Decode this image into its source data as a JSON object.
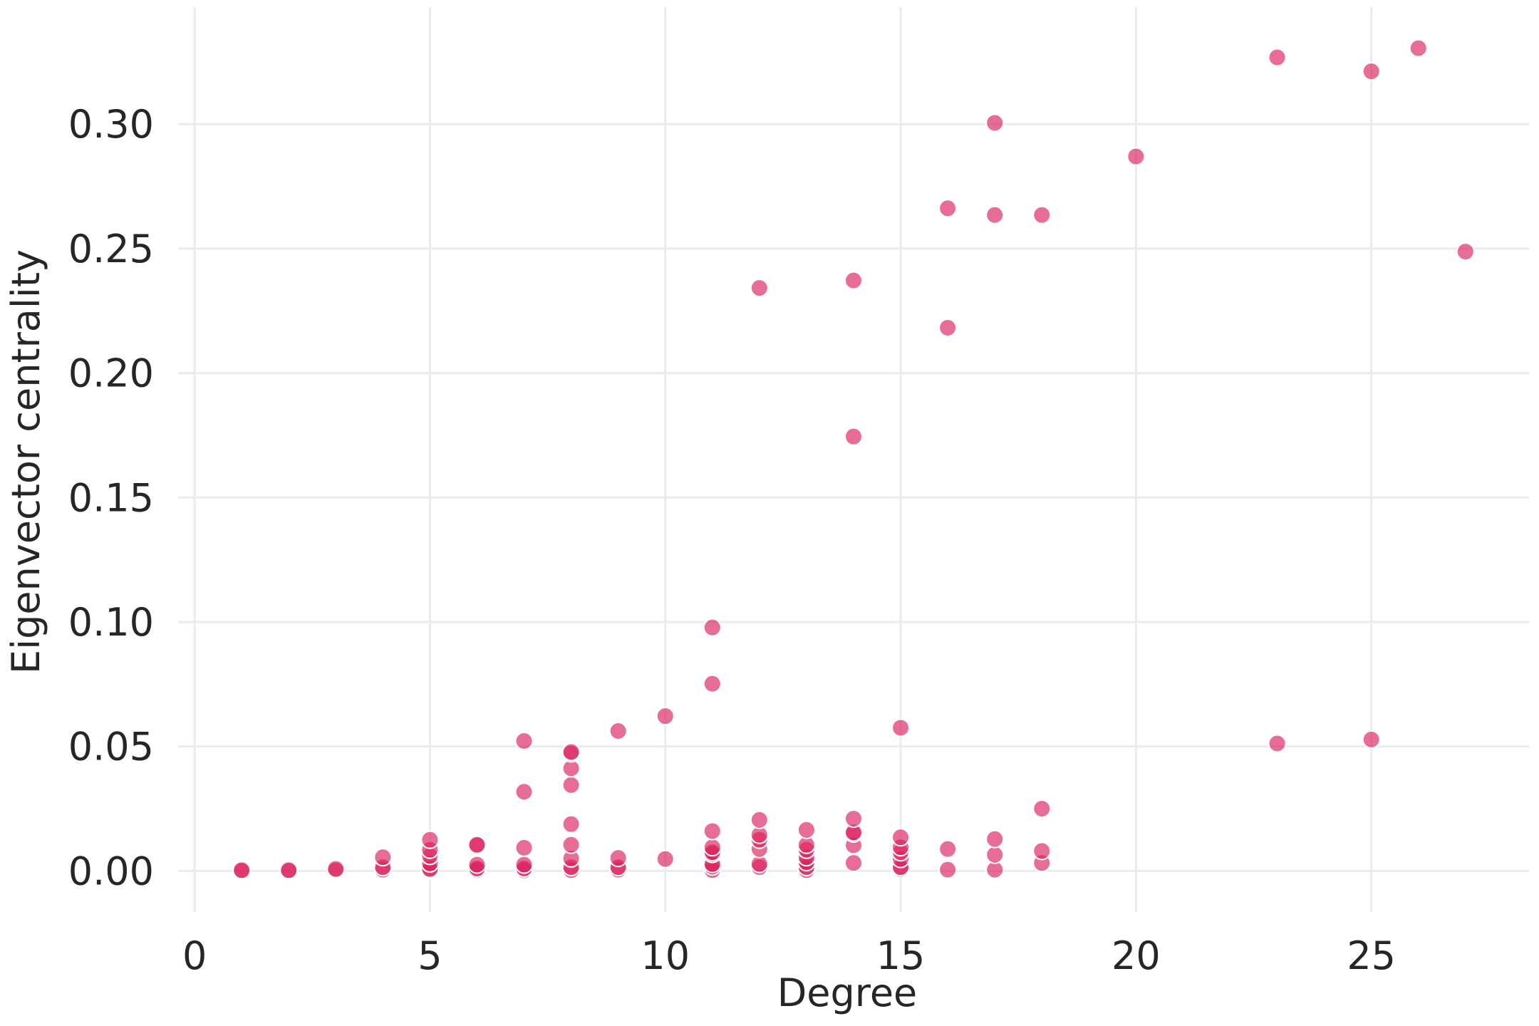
{
  "chart_data": {
    "type": "scatter",
    "title": "",
    "xlabel": "Degree",
    "ylabel": "Eigenvector centrality",
    "xlim": [
      -0.35,
      28.35
    ],
    "ylim": [
      -0.0165,
      0.347
    ],
    "xticks": [
      "0",
      "5",
      "10",
      "15",
      "20",
      "25"
    ],
    "xtick_values": [
      0,
      5,
      10,
      15,
      20,
      25
    ],
    "yticks": [
      "0.00",
      "0.05",
      "0.10",
      "0.15",
      "0.20",
      "0.25",
      "0.30"
    ],
    "ytick_values": [
      0,
      0.05,
      0.1,
      0.15,
      0.2,
      0.25,
      0.3
    ],
    "grid": true,
    "marker_color": "#dc1e5a",
    "marker_opacity": 0.65,
    "points": [
      {
        "x": 1,
        "y": 0.0
      },
      {
        "x": 1,
        "y": 0.0003
      },
      {
        "x": 2,
        "y": 0.0
      },
      {
        "x": 2,
        "y": 0.0003
      },
      {
        "x": 3,
        "y": 0.0002
      },
      {
        "x": 3,
        "y": 0.0008
      },
      {
        "x": 4,
        "y": 0.0005
      },
      {
        "x": 4,
        "y": 0.0015
      },
      {
        "x": 4,
        "y": 0.0055
      },
      {
        "x": 5,
        "y": 0.0002
      },
      {
        "x": 5,
        "y": 0.0008
      },
      {
        "x": 5,
        "y": 0.003
      },
      {
        "x": 5,
        "y": 0.006
      },
      {
        "x": 5,
        "y": 0.0085
      },
      {
        "x": 5,
        "y": 0.0125
      },
      {
        "x": 6,
        "y": 0.0003
      },
      {
        "x": 6,
        "y": 0.001
      },
      {
        "x": 6,
        "y": 0.0025
      },
      {
        "x": 6,
        "y": 0.0103
      },
      {
        "x": 6,
        "y": 0.0105
      },
      {
        "x": 7,
        "y": 0.0002
      },
      {
        "x": 7,
        "y": 0.001
      },
      {
        "x": 7,
        "y": 0.0025
      },
      {
        "x": 7,
        "y": 0.0093
      },
      {
        "x": 7,
        "y": 0.0318
      },
      {
        "x": 7,
        "y": 0.0522
      },
      {
        "x": 8,
        "y": 0.0003
      },
      {
        "x": 8,
        "y": 0.0015
      },
      {
        "x": 8,
        "y": 0.005
      },
      {
        "x": 8,
        "y": 0.0105
      },
      {
        "x": 8,
        "y": 0.0188
      },
      {
        "x": 8,
        "y": 0.0345
      },
      {
        "x": 8,
        "y": 0.0412
      },
      {
        "x": 8,
        "y": 0.0472
      },
      {
        "x": 8,
        "y": 0.0478
      },
      {
        "x": 9,
        "y": 0.0005
      },
      {
        "x": 9,
        "y": 0.0015
      },
      {
        "x": 9,
        "y": 0.0052
      },
      {
        "x": 9,
        "y": 0.0562
      },
      {
        "x": 10,
        "y": 0.0048
      },
      {
        "x": 10,
        "y": 0.0622
      },
      {
        "x": 11,
        "y": 0.0003
      },
      {
        "x": 11,
        "y": 0.0018
      },
      {
        "x": 11,
        "y": 0.0028
      },
      {
        "x": 11,
        "y": 0.0068
      },
      {
        "x": 11,
        "y": 0.0075
      },
      {
        "x": 11,
        "y": 0.0095
      },
      {
        "x": 11,
        "y": 0.016
      },
      {
        "x": 11,
        "y": 0.0752
      },
      {
        "x": 11,
        "y": 0.0978
      },
      {
        "x": 12,
        "y": 0.0015
      },
      {
        "x": 12,
        "y": 0.0028
      },
      {
        "x": 12,
        "y": 0.0088
      },
      {
        "x": 12,
        "y": 0.0125
      },
      {
        "x": 12,
        "y": 0.0145
      },
      {
        "x": 12,
        "y": 0.0205
      },
      {
        "x": 12,
        "y": 0.2342
      },
      {
        "x": 13,
        "y": 0.0003
      },
      {
        "x": 13,
        "y": 0.0015
      },
      {
        "x": 13,
        "y": 0.0035
      },
      {
        "x": 13,
        "y": 0.0055
      },
      {
        "x": 13,
        "y": 0.0085
      },
      {
        "x": 13,
        "y": 0.0105
      },
      {
        "x": 13,
        "y": 0.0165
      },
      {
        "x": 14,
        "y": 0.0032
      },
      {
        "x": 14,
        "y": 0.0103
      },
      {
        "x": 14,
        "y": 0.015
      },
      {
        "x": 14,
        "y": 0.0155
      },
      {
        "x": 14,
        "y": 0.021
      },
      {
        "x": 14,
        "y": 0.1745
      },
      {
        "x": 14,
        "y": 0.2372
      },
      {
        "x": 15,
        "y": 0.0008
      },
      {
        "x": 15,
        "y": 0.0015
      },
      {
        "x": 15,
        "y": 0.0048
      },
      {
        "x": 15,
        "y": 0.0075
      },
      {
        "x": 15,
        "y": 0.0095
      },
      {
        "x": 15,
        "y": 0.0135
      },
      {
        "x": 15,
        "y": 0.0575
      },
      {
        "x": 16,
        "y": 0.0005
      },
      {
        "x": 16,
        "y": 0.0088
      },
      {
        "x": 16,
        "y": 0.2182
      },
      {
        "x": 16,
        "y": 0.2662
      },
      {
        "x": 17,
        "y": 0.0005
      },
      {
        "x": 17,
        "y": 0.0065
      },
      {
        "x": 17,
        "y": 0.0128
      },
      {
        "x": 17,
        "y": 0.2635
      },
      {
        "x": 17,
        "y": 0.3005
      },
      {
        "x": 18,
        "y": 0.0032
      },
      {
        "x": 18,
        "y": 0.008
      },
      {
        "x": 18,
        "y": 0.025
      },
      {
        "x": 18,
        "y": 0.2635
      },
      {
        "x": 20,
        "y": 0.287
      },
      {
        "x": 23,
        "y": 0.0512
      },
      {
        "x": 23,
        "y": 0.3268
      },
      {
        "x": 25,
        "y": 0.0528
      },
      {
        "x": 25,
        "y": 0.3212
      },
      {
        "x": 26,
        "y": 0.3305
      },
      {
        "x": 27,
        "y": 0.2488
      }
    ]
  }
}
